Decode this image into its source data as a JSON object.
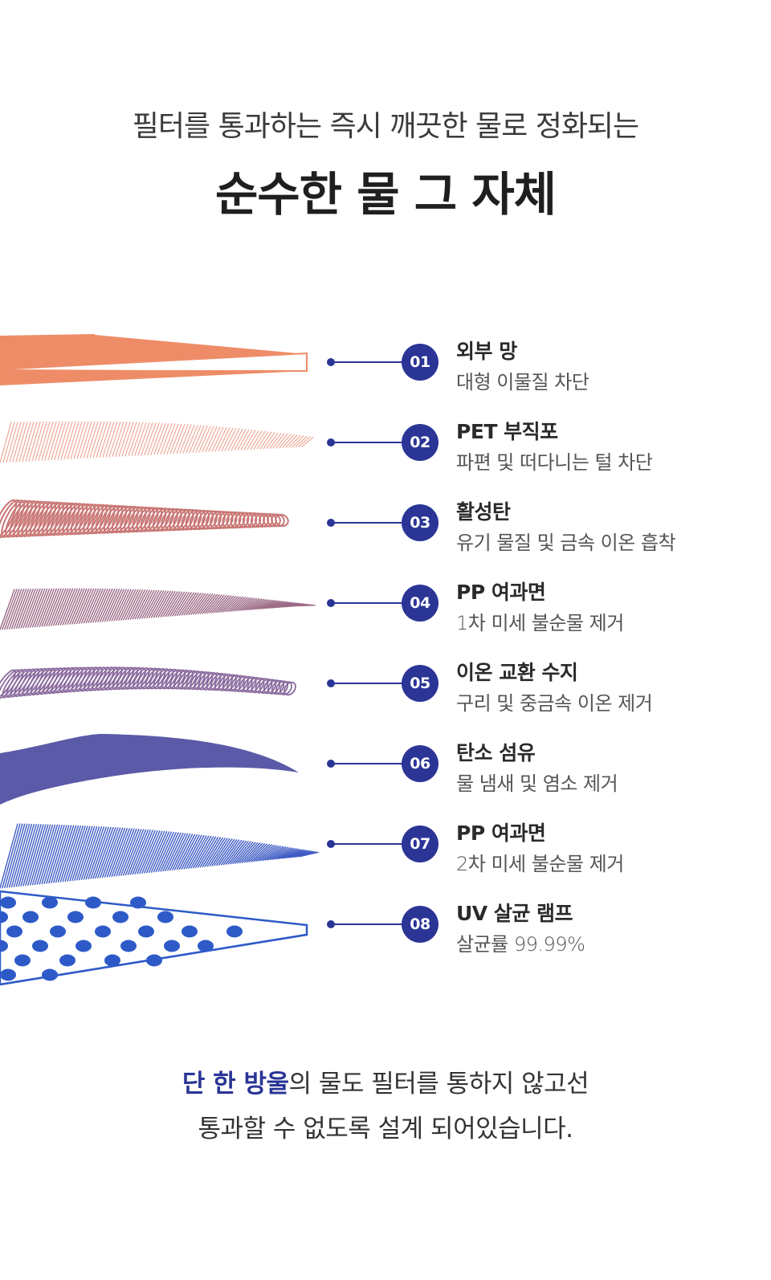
{
  "header": {
    "subtitle": "필터를 통과하는 즉시 깨끗한 물로 정화되는",
    "title": "순수한 물 그 자체"
  },
  "layer_colors": [
    "#ee8c68",
    "#ec9a85",
    "#c97775",
    "#9c6a86",
    "#8a6a9e",
    "#5a5aa8",
    "#3f5cc4",
    "#2e5ac8"
  ],
  "steps": [
    {
      "num": "01",
      "title": "외부 망",
      "desc": "대형 이물질 차단"
    },
    {
      "num": "02",
      "title": "PET 부직포",
      "desc": "파편 및 떠다니는 털 차단"
    },
    {
      "num": "03",
      "title": "활성탄",
      "desc": "유기 물질 및 금속 이온 흡착"
    },
    {
      "num": "04",
      "title": "PP 여과면",
      "desc": "1차 미세 불순물 제거"
    },
    {
      "num": "05",
      "title": "이온 교환 수지",
      "desc": "구리 및 중금속 이온 제거"
    },
    {
      "num": "06",
      "title": "탄소 섬유",
      "desc": "물 냄새 및 염소 제거"
    },
    {
      "num": "07",
      "title": "PP 여과면",
      "desc": "2차 미세 불순물 제거"
    },
    {
      "num": "08",
      "title": "UV 살균 램프",
      "desc": "살균률 99.99%"
    }
  ],
  "footer": {
    "highlight": "단 한 방울",
    "line1_rest": "의 물도 필터를 통하지 않고선",
    "line2": "통과할 수 없도록 설계 되어있습니다."
  }
}
